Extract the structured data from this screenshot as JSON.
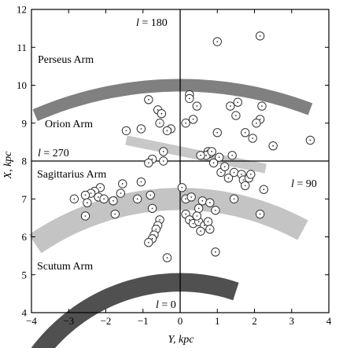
{
  "chart_data": {
    "type": "scatter",
    "xlabel": "Y, kpc",
    "ylabel": "X, kpc",
    "xlim": [
      -4,
      4
    ],
    "ylim": [
      4,
      12
    ],
    "xticks": [
      "-4",
      "-3",
      "-2",
      "-1",
      "0",
      "1",
      "2",
      "3",
      "4"
    ],
    "yticks": [
      "4",
      "5",
      "6",
      "7",
      "8",
      "9",
      "10",
      "11",
      "12"
    ],
    "grid": false,
    "crosshair": {
      "x": 0,
      "y": 8
    },
    "direction_labels": {
      "top": "l = 180",
      "left": "l = 270",
      "right": "l = 90",
      "bottom": "l = 0"
    },
    "arms": [
      {
        "name": "Perseus Arm",
        "color": "#808080",
        "width_kpc": 0.34,
        "cx": 0,
        "cy": 0,
        "r": 10.0,
        "y_range": [
          -3.9,
          3.5
        ]
      },
      {
        "name": "Orion Arm",
        "color": "#c8c8c8",
        "width_kpc": 0.26,
        "cx": 0,
        "cy": 0,
        "r": 8.25,
        "y_range": [
          -0.7,
          2.3
        ],
        "straight": {
          "from": [
            -1.45,
            8.55
          ],
          "to": [
            2.3,
            7.8
          ]
        }
      },
      {
        "name": "Sagittarius Arm",
        "color": "#c4c4c4",
        "width_kpc": 0.6,
        "cx": 0,
        "cy": 0,
        "r": 7.0,
        "y_range": [
          -3.9,
          3.3
        ]
      },
      {
        "name": "Scutum Arm",
        "color": "#505050",
        "width_kpc": 0.5,
        "cx": 0,
        "cy": 0,
        "r": 4.8,
        "y_range": [
          -3.9,
          1.5
        ]
      }
    ],
    "points": [
      {
        "y": 1.0,
        "x": 11.15
      },
      {
        "y": 2.15,
        "x": 11.3
      },
      {
        "y": 0.25,
        "x": 9.75
      },
      {
        "y": 0.25,
        "x": 9.65
      },
      {
        "y": 0.45,
        "x": 9.45
      },
      {
        "y": 1.55,
        "x": 9.55
      },
      {
        "y": 1.35,
        "x": 9.45
      },
      {
        "y": 2.2,
        "x": 9.45
      },
      {
        "y": -0.85,
        "x": 9.62
      },
      {
        "y": -0.6,
        "x": 9.35
      },
      {
        "y": -0.5,
        "x": 9.25
      },
      {
        "y": -0.55,
        "x": 9.0
      },
      {
        "y": 0.15,
        "x": 9.0
      },
      {
        "y": 0.35,
        "x": 9.1
      },
      {
        "y": 1.5,
        "x": 9.2
      },
      {
        "y": 2.15,
        "x": 9.1
      },
      {
        "y": 2.05,
        "x": 9.0
      },
      {
        "y": -1.05,
        "x": 8.85
      },
      {
        "y": -1.45,
        "x": 8.8
      },
      {
        "y": -0.25,
        "x": 8.85
      },
      {
        "y": -0.35,
        "x": 8.8
      },
      {
        "y": 1.0,
        "x": 8.75
      },
      {
        "y": 1.75,
        "x": 8.75
      },
      {
        "y": 2.5,
        "x": 8.4
      },
      {
        "y": 3.5,
        "x": 8.55
      },
      {
        "y": 1.95,
        "x": 8.6
      },
      {
        "y": 0.75,
        "x": 8.25
      },
      {
        "y": 0.8,
        "x": 8.2
      },
      {
        "y": 0.7,
        "x": 8.15
      },
      {
        "y": 0.85,
        "x": 8.25
      },
      {
        "y": 1.4,
        "x": 8.15
      },
      {
        "y": 1.05,
        "x": 8.1
      },
      {
        "y": 0.55,
        "x": 8.15
      },
      {
        "y": -0.45,
        "x": 8.25
      },
      {
        "y": -0.75,
        "x": 8.05
      },
      {
        "y": -0.85,
        "x": 7.95
      },
      {
        "y": -0.45,
        "x": 8.0
      },
      {
        "y": 0.9,
        "x": 7.95
      },
      {
        "y": 1.1,
        "x": 7.7
      },
      {
        "y": 1.2,
        "x": 7.85
      },
      {
        "y": 1.3,
        "x": 7.55
      },
      {
        "y": 1.45,
        "x": 7.7
      },
      {
        "y": 1.65,
        "x": 7.65
      },
      {
        "y": 1.7,
        "x": 7.5
      },
      {
        "y": 1.85,
        "x": 7.55
      },
      {
        "y": 1.9,
        "x": 7.65
      },
      {
        "y": 2.25,
        "x": 7.25
      },
      {
        "y": 1.75,
        "x": 7.35
      },
      {
        "y": -1.05,
        "x": 7.45
      },
      {
        "y": -1.55,
        "x": 7.4
      },
      {
        "y": -2.15,
        "x": 7.3
      },
      {
        "y": -2.3,
        "x": 7.2
      },
      {
        "y": -2.4,
        "x": 7.15
      },
      {
        "y": -2.55,
        "x": 7.1
      },
      {
        "y": -2.2,
        "x": 7.05
      },
      {
        "y": -2.05,
        "x": 7.0
      },
      {
        "y": -2.85,
        "x": 7.0
      },
      {
        "y": -2.5,
        "x": 6.9
      },
      {
        "y": -1.8,
        "x": 6.95
      },
      {
        "y": -1.6,
        "x": 7.15
      },
      {
        "y": -1.15,
        "x": 7.0
      },
      {
        "y": -0.8,
        "x": 7.1
      },
      {
        "y": -1.75,
        "x": 6.6
      },
      {
        "y": -2.55,
        "x": 6.55
      },
      {
        "y": -0.75,
        "x": 6.75
      },
      {
        "y": 0.05,
        "x": 7.3
      },
      {
        "y": 0.15,
        "x": 7.0
      },
      {
        "y": 0.3,
        "x": 7.05
      },
      {
        "y": 0.5,
        "x": 6.75
      },
      {
        "y": 0.6,
        "x": 6.95
      },
      {
        "y": 0.8,
        "x": 6.9
      },
      {
        "y": 1.45,
        "x": 7.0
      },
      {
        "y": 0.95,
        "x": 6.7
      },
      {
        "y": 0.15,
        "x": 6.6
      },
      {
        "y": 0.25,
        "x": 6.45
      },
      {
        "y": 0.35,
        "x": 6.35
      },
      {
        "y": 0.5,
        "x": 6.4
      },
      {
        "y": 0.65,
        "x": 6.3
      },
      {
        "y": 0.75,
        "x": 6.4
      },
      {
        "y": 0.8,
        "x": 6.2
      },
      {
        "y": 0.55,
        "x": 6.15
      },
      {
        "y": 2.15,
        "x": 6.6
      },
      {
        "y": -0.55,
        "x": 6.45
      },
      {
        "y": -0.6,
        "x": 6.3
      },
      {
        "y": -0.65,
        "x": 6.2
      },
      {
        "y": -0.7,
        "x": 6.05
      },
      {
        "y": -0.75,
        "x": 5.95
      },
      {
        "y": -0.85,
        "x": 5.85
      },
      {
        "y": -0.35,
        "x": 5.45
      },
      {
        "y": 0.95,
        "x": 5.6
      },
      {
        "y": 0.45,
        "x": 6.55
      }
    ]
  }
}
